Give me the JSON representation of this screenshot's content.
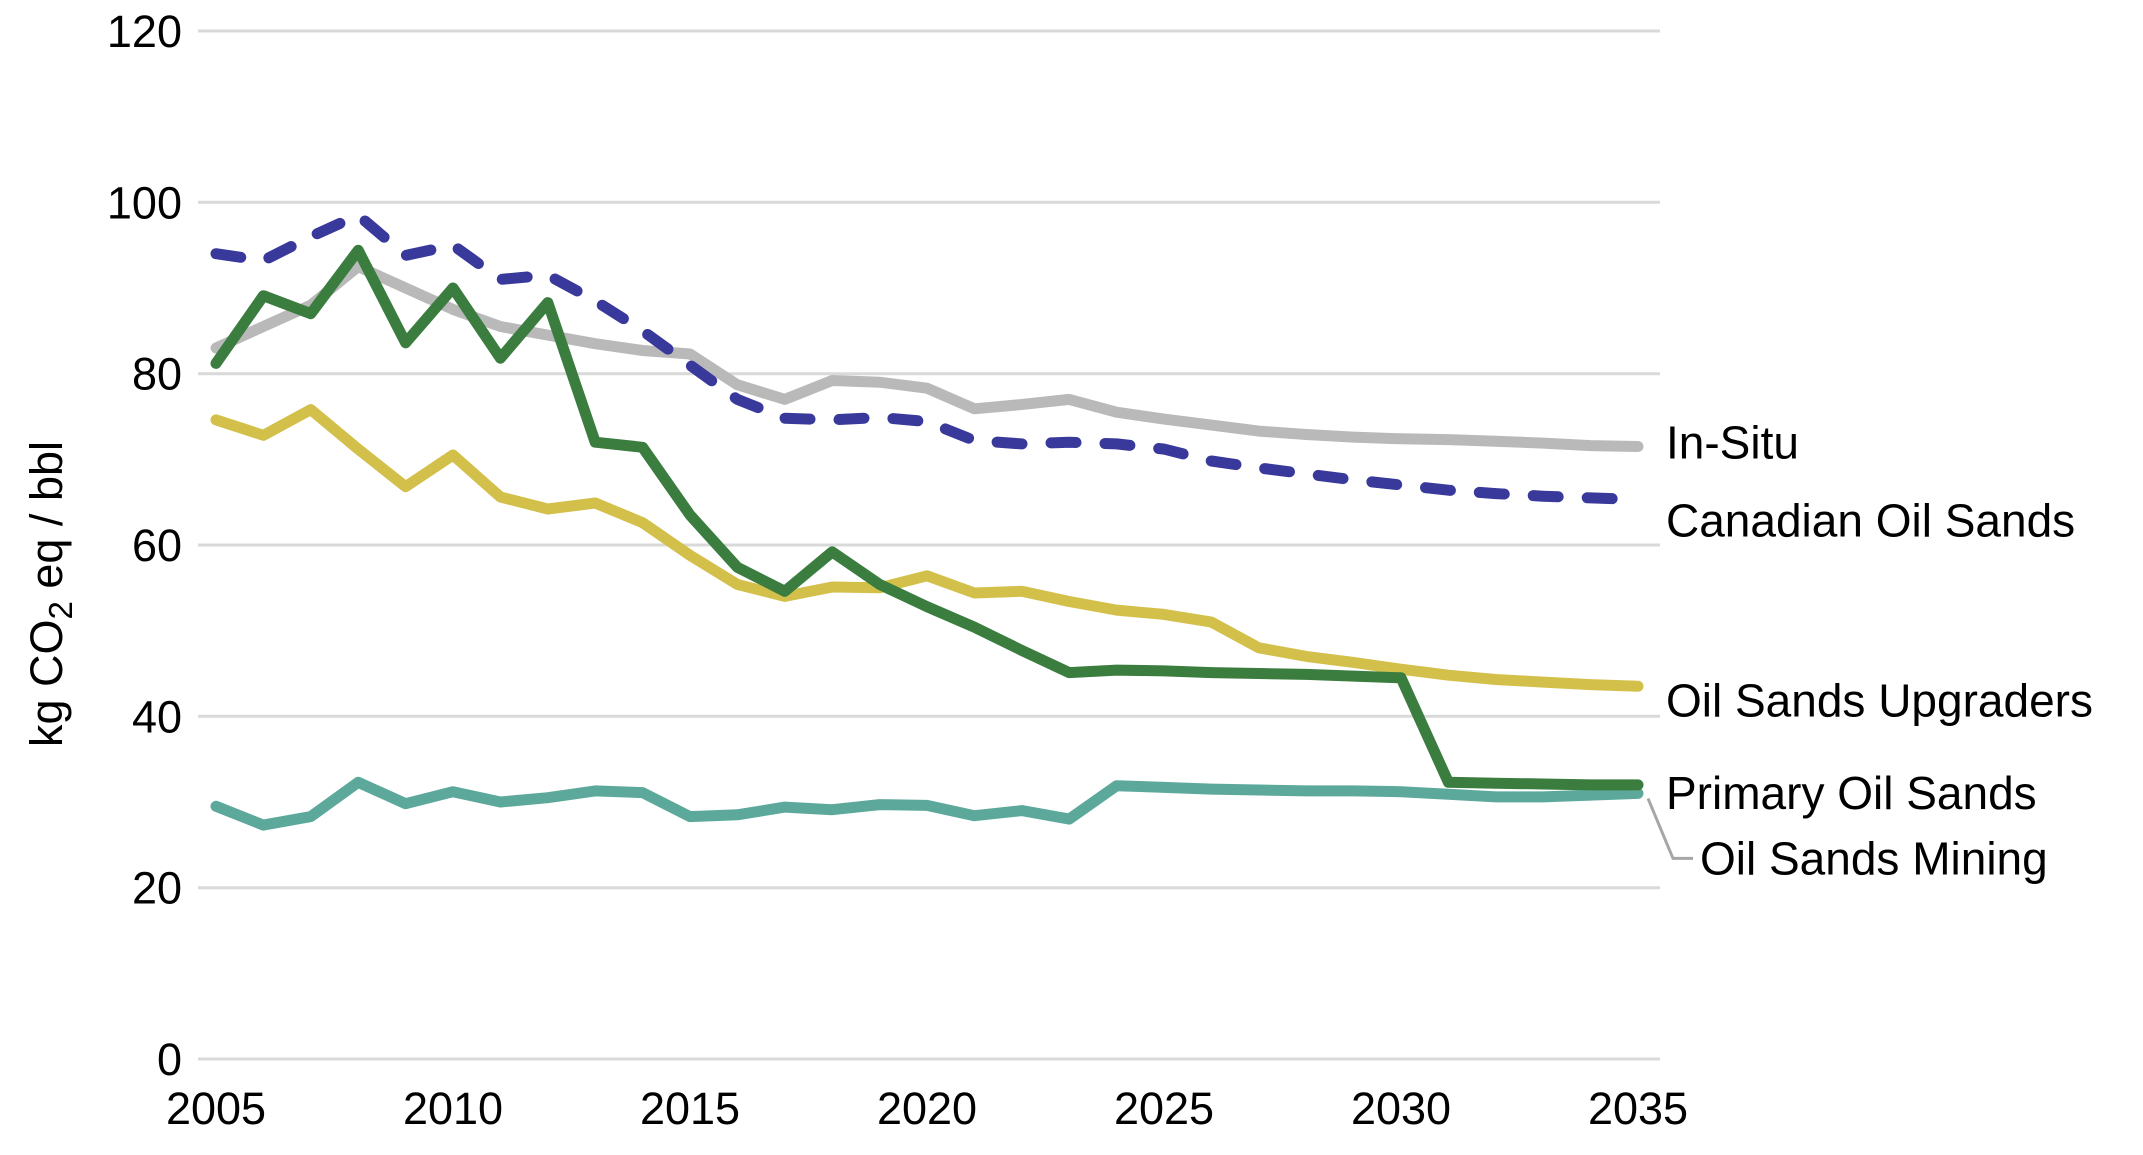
{
  "chart_data": {
    "type": "line",
    "title": "",
    "xlabel": "",
    "ylabel_parts": [
      {
        "text": "kg CO"
      },
      {
        "text": "2",
        "subscript": true
      },
      {
        "text": " eq / bbl"
      }
    ],
    "xlim": [
      2005,
      2035
    ],
    "ylim": [
      0,
      120
    ],
    "x_ticks": [
      2005,
      2010,
      2015,
      2020,
      2025,
      2030,
      2035
    ],
    "y_ticks": [
      0,
      20,
      40,
      60,
      80,
      100,
      120
    ],
    "grid": "horizontal",
    "legend_position": "right-end-labels",
    "background_color": "#ffffff",
    "gridline_color": "#d9d9d9",
    "leader_line_color": "#a6a6a6",
    "text_color": "#000000",
    "x_start_year": 2005,
    "x_step_years": 1,
    "series": [
      {
        "name": "In-Situ",
        "color": "#b9b9b9",
        "line_style": "solid",
        "label_dy": -4,
        "values": [
          83,
          85.5,
          88,
          92.5,
          90,
          87.5,
          85.5,
          84.5,
          83.5,
          82.7,
          82.3,
          78.7,
          77,
          79.2,
          79,
          78.3,
          75.9,
          76.4,
          77,
          75.5,
          74.7,
          74,
          73.3,
          72.9,
          72.6,
          72.4,
          72.3,
          72.1,
          71.9,
          71.6,
          71.5
        ]
      },
      {
        "name": "Canadian Oil Sands",
        "color": "#39399b",
        "line_style": "dashed",
        "label_dy": 21,
        "values": [
          94,
          93.2,
          96,
          98.5,
          93.8,
          95,
          91,
          91.5,
          88.5,
          85,
          81,
          77,
          74.8,
          74.6,
          74.9,
          74.4,
          72.2,
          71.8,
          72,
          71.8,
          71.2,
          69.8,
          69,
          68.3,
          67.6,
          67,
          66.4,
          66,
          65.7,
          65.5,
          65.3
        ]
      },
      {
        "name": "Oil Sands Upgraders",
        "color": "#d3c04b",
        "line_style": "solid",
        "label_dy": 14,
        "values": [
          74.6,
          72.8,
          75.8,
          71.2,
          66.8,
          70.5,
          65.6,
          64.2,
          64.9,
          62.6,
          58.8,
          55.4,
          54,
          55.1,
          55,
          56.4,
          54.4,
          54.6,
          53.4,
          52.4,
          51.9,
          51,
          48,
          47,
          46.3,
          45.5,
          44.8,
          44.3,
          44,
          43.7,
          43.5
        ]
      },
      {
        "name": "Primary Oil Sands",
        "color": "#3a7d3f",
        "line_style": "solid",
        "label_dy": 8,
        "values": [
          81.2,
          89.1,
          87,
          94.4,
          83.6,
          90,
          81.8,
          88.3,
          72,
          71.4,
          63.5,
          57.4,
          54.6,
          59.2,
          55.4,
          52.8,
          50.4,
          47.7,
          45.1,
          45.4,
          45.3,
          45.1,
          45,
          44.9,
          44.7,
          44.5,
          32.3,
          32.2,
          32.1,
          32,
          32
        ]
      },
      {
        "name": "Oil Sands Mining",
        "color": "#5ca99b",
        "line_style": "solid",
        "label_dy": 65,
        "leader_line": true,
        "values": [
          29.5,
          27.3,
          28.3,
          32.3,
          29.8,
          31.2,
          30,
          30.5,
          31.3,
          31.1,
          28.3,
          28.5,
          29.4,
          29.1,
          29.7,
          29.6,
          28.4,
          29,
          28,
          31.9,
          31.7,
          31.5,
          31.4,
          31.3,
          31.3,
          31.2,
          30.9,
          30.6,
          30.6,
          30.8,
          31
        ]
      }
    ]
  }
}
